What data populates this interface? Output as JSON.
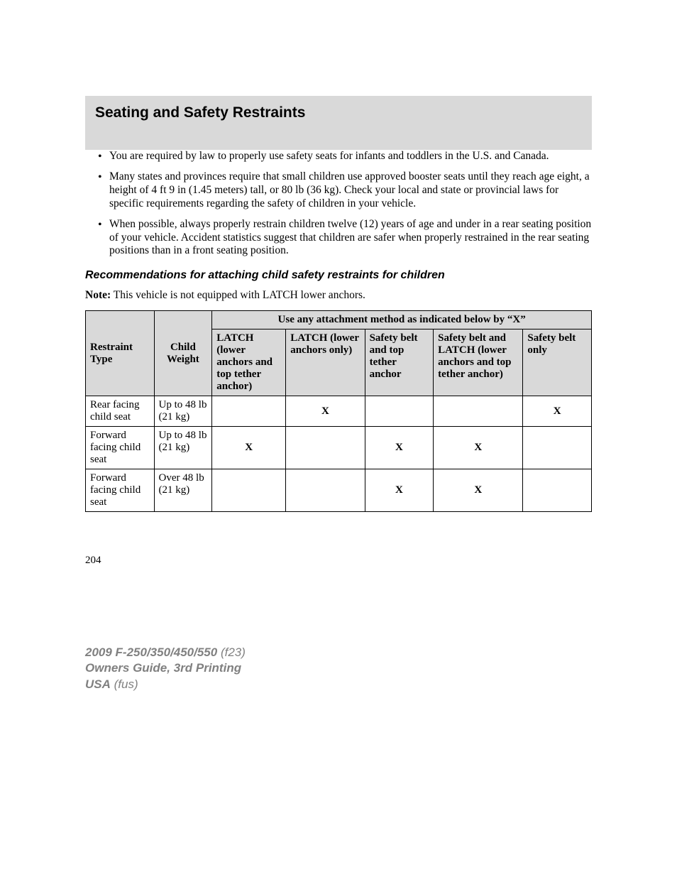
{
  "header": {
    "title": "Seating and Safety Restraints"
  },
  "bullets": [
    "You are required by law to properly use safety seats for infants and toddlers in the U.S. and Canada.",
    "Many states and provinces require that small children use approved booster seats until they reach age eight, a height of 4 ft 9 in (1.45 meters) tall, or 80 lb (36 kg). Check your local and state or provincial laws for specific requirements regarding the safety of children in your vehicle.",
    "When possible, always properly restrain children twelve (12) years of age and under in a rear seating position of your vehicle. Accident statistics suggest that children are safer when properly restrained in the rear seating positions than in a front seating position."
  ],
  "subheading": "Recommendations for attaching child safety restraints for children",
  "note": {
    "label": "Note:",
    "text": " This vehicle is not equipped with LATCH lower anchors."
  },
  "table": {
    "spanner": "Use any attachment method as indicated below by “X”",
    "row_headers": [
      "Restraint Type",
      "Child Weight"
    ],
    "col_headers": [
      "LATCH (lower anchors and top tether anchor)",
      "LATCH (lower anchors only)",
      "Safety belt and top tether anchor",
      "Safety belt and LATCH (lower anchors and top tether anchor)",
      "Safety belt only"
    ],
    "rows": [
      {
        "type": "Rear facing child seat",
        "weight": "Up to 48 lb (21 kg)",
        "marks": [
          "",
          "X",
          "",
          "",
          "X"
        ]
      },
      {
        "type": "Forward facing child seat",
        "weight": "Up to 48 lb (21 kg)",
        "marks": [
          "X",
          "",
          "X",
          "X",
          ""
        ]
      },
      {
        "type": "Forward facing child seat",
        "weight": "Over 48 lb (21 kg)",
        "marks": [
          "",
          "",
          "X",
          "X",
          ""
        ]
      }
    ],
    "col_widths": [
      "13%",
      "11%",
      "14%",
      "15%",
      "13%",
      "17%",
      "13%"
    ]
  },
  "page_number": "204",
  "footer": {
    "line1_bold": "2009 F-250/350/450/550",
    "line1_ital": " (f23)",
    "line2": "Owners Guide, 3rd Printing",
    "line3_bold": "USA",
    "line3_ital": " (fus)"
  },
  "colors": {
    "header_bg": "#d9d9d9",
    "text": "#000000",
    "footer_text": "#808080"
  }
}
